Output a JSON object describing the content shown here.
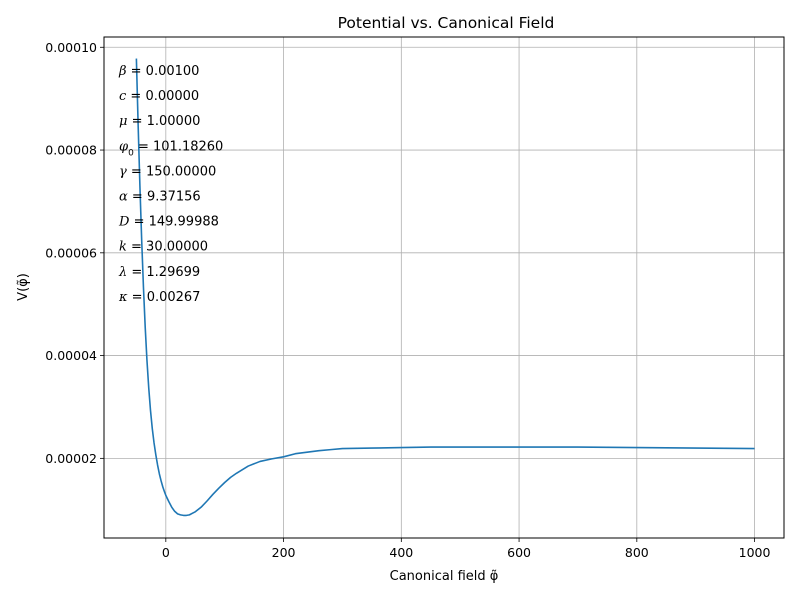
{
  "chart_data": {
    "type": "line",
    "title": "Potential vs. Canonical Field",
    "xlabel": "Canonical field φ̃",
    "ylabel": "V(φ̃)",
    "xlim": [
      -105,
      1050
    ],
    "ylim": [
      4.5e-06,
      0.000102
    ],
    "xticks": [
      0,
      200,
      400,
      600,
      800,
      1000
    ],
    "xtick_labels": [
      "0",
      "200",
      "400",
      "600",
      "800",
      "1000"
    ],
    "yticks": [
      2e-05,
      4e-05,
      6e-05,
      8e-05,
      0.0001
    ],
    "ytick_labels": [
      "0.00002",
      "0.00004",
      "0.00006",
      "0.00008",
      "0.00010"
    ],
    "grid": true,
    "line_color": "#1f77b4",
    "series": [
      {
        "x": [
          -50,
          -47,
          -44,
          -41,
          -38,
          -35,
          -32,
          -29,
          -26,
          -23,
          -20,
          -17,
          -14,
          -11,
          -8,
          -5,
          -2,
          0,
          5,
          10,
          15,
          20,
          25,
          30,
          35,
          40,
          45,
          50,
          60,
          70,
          80,
          90,
          100,
          110,
          120,
          140,
          160,
          180,
          200,
          220,
          240,
          260,
          280,
          300,
          350,
          400,
          450,
          500,
          600,
          700,
          800,
          900,
          1000
        ],
        "y": [
          9.78e-05,
          8.48e-05,
          7.3e-05,
          6.25e-05,
          5.33e-05,
          4.55e-05,
          3.9e-05,
          3.37e-05,
          2.93e-05,
          2.58e-05,
          2.3e-05,
          2.07e-05,
          1.87e-05,
          1.7e-05,
          1.56e-05,
          1.44e-05,
          1.34e-05,
          1.28e-05,
          1.16e-05,
          1.05e-05,
          9.7e-06,
          9.2e-06,
          9e-06,
          8.9e-06,
          8.9e-06,
          9e-06,
          9.3e-06,
          9.6e-06,
          1.05e-05,
          1.17e-05,
          1.3e-05,
          1.42e-05,
          1.53e-05,
          1.63e-05,
          1.71e-05,
          1.85e-05,
          1.94e-05,
          1.99e-05,
          2.03e-05,
          2.09e-05,
          2.12e-05,
          2.15e-05,
          2.17e-05,
          2.19e-05,
          2.2e-05,
          2.21e-05,
          2.22e-05,
          2.22e-05,
          2.22e-05,
          2.22e-05,
          2.21e-05,
          2.2e-05,
          2.19e-05
        ]
      }
    ],
    "annotations": [
      {
        "symbol": "β",
        "sub": "",
        "text": " = 0.00100"
      },
      {
        "symbol": "c",
        "sub": "",
        "text": " = 0.00000"
      },
      {
        "symbol": "μ",
        "sub": "",
        "text": " = 1.00000"
      },
      {
        "symbol": "φ",
        "sub": "0",
        "text": " = 101.18260"
      },
      {
        "symbol": "γ",
        "sub": "",
        "text": " = 150.00000"
      },
      {
        "symbol": "α",
        "sub": "",
        "text": " = 9.37156"
      },
      {
        "symbol": "D",
        "sub": "",
        "text": " = 149.99988"
      },
      {
        "symbol": "k",
        "sub": "",
        "text": " = 30.00000"
      },
      {
        "symbol": "λ",
        "sub": "",
        "text": " = 1.29699"
      },
      {
        "symbol": "κ",
        "sub": "",
        "text": " = 0.00267"
      }
    ]
  }
}
